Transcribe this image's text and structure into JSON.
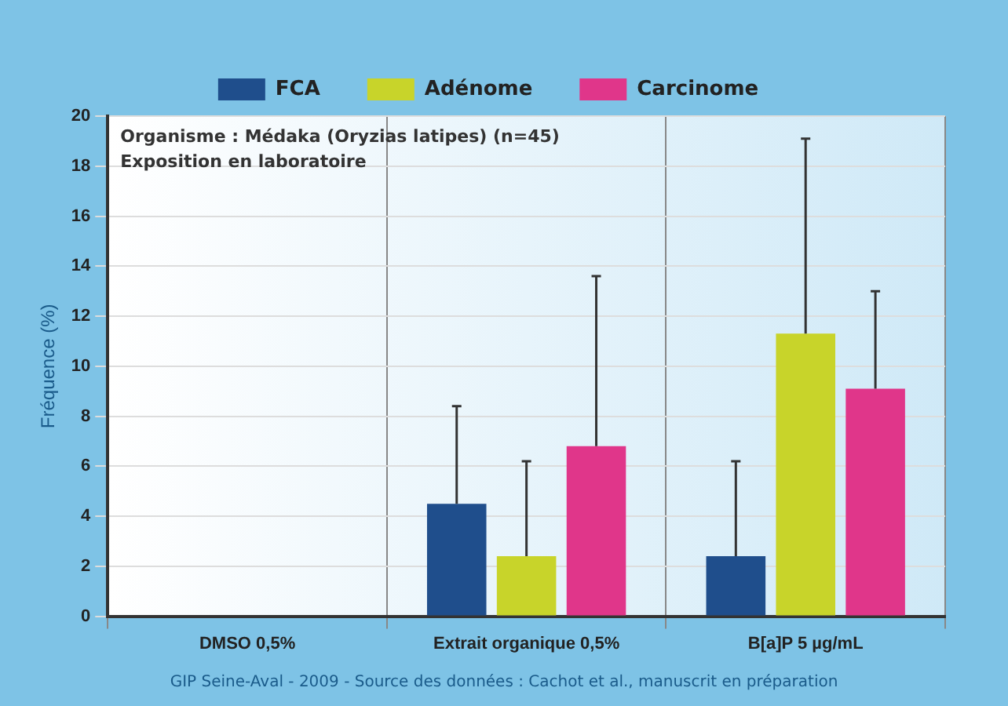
{
  "chart_data": {
    "type": "bar",
    "ylabel": "Fréquence (%)",
    "categories": [
      "DMSO 0,5%",
      "Extrait organique 0,5%",
      "B[a]P 5 µg/mL"
    ],
    "series": [
      {
        "name": "FCA",
        "color": "#1f4e8c",
        "values": [
          0,
          4.5,
          2.4
        ],
        "errors": [
          null,
          [
            4.5,
            8.4
          ],
          [
            2.4,
            6.2
          ]
        ]
      },
      {
        "name": "Adénome",
        "color": "#c8d42a",
        "values": [
          0,
          2.4,
          11.3
        ],
        "errors": [
          null,
          [
            2.4,
            6.2
          ],
          [
            11.3,
            19.1
          ]
        ]
      },
      {
        "name": "Carcinome",
        "color": "#e0368a",
        "values": [
          0,
          6.8,
          9.1
        ],
        "errors": [
          null,
          [
            6.8,
            13.6
          ],
          [
            9.1,
            13.0
          ]
        ]
      }
    ],
    "ylim": [
      0,
      20
    ],
    "yticks": [
      0,
      2,
      4,
      6,
      8,
      10,
      12,
      14,
      16,
      18,
      20
    ],
    "grid": true,
    "legend": "top",
    "annotations": [
      "Organisme : Médaka (Oryzias latipes) (n=45)",
      "Exposition en laboratoire",
      "GIP Seine-Aval - 2009 - Source des données : Cachot et al., manuscrit en préparation"
    ]
  }
}
